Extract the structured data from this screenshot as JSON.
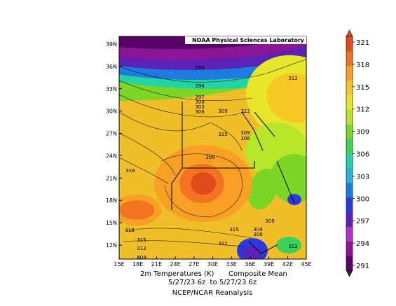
{
  "chart_data": {
    "type": "heatmap",
    "attribution": "NOAA Physical Sciences Laboratory",
    "caption": {
      "line1_left": "2m Temperatures (K)",
      "line1_right": "Composite Mean",
      "line2": "5/27/23 6z  to 5/27/23 6z",
      "line3": "NCEP/NCAR Reanalysis"
    },
    "x_ticks": [
      "15E",
      "18E",
      "21E",
      "24E",
      "27E",
      "30E",
      "33E",
      "36E",
      "39E",
      "42E",
      "45E"
    ],
    "y_ticks": [
      "39N",
      "36N",
      "33N",
      "30N",
      "27N",
      "24N",
      "21N",
      "18N",
      "15N",
      "12N"
    ],
    "xlim": [
      15,
      45
    ],
    "ylim": [
      10,
      40
    ],
    "colorbar": {
      "ticks": [
        "321",
        "318",
        "315",
        "312",
        "309",
        "306",
        "303",
        "300",
        "297",
        "294",
        "291"
      ],
      "range": [
        291,
        321
      ],
      "colors": [
        "#5b0069",
        "#8a1596",
        "#b233c8",
        "#5a22b8",
        "#2c39e0",
        "#1e7be0",
        "#22b3d6",
        "#24d3a2",
        "#3cd25a",
        "#7bd626",
        "#b7e52a",
        "#e6e62b",
        "#f8c726",
        "#f7a023",
        "#f27420",
        "#e04a1c"
      ]
    },
    "contour_labels": [
      "294",
      "294",
      "297",
      "300",
      "303",
      "306",
      "309",
      "312",
      "312",
      "309",
      "306",
      "315",
      "318",
      "309",
      "318",
      "315",
      "312",
      "309",
      "315",
      "312",
      "309",
      "306",
      "309",
      "312"
    ],
    "grid": false
  }
}
